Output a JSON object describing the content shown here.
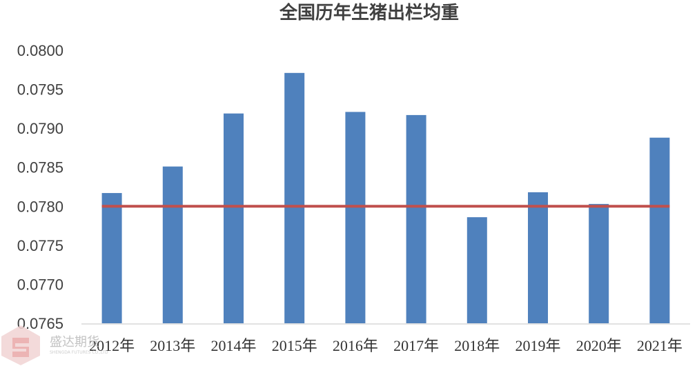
{
  "chart_data": {
    "type": "bar",
    "title": "全国历年生猪出栏均重",
    "categories": [
      "2012年",
      "2013年",
      "2014年",
      "2015年",
      "2016年",
      "2017年",
      "2018年",
      "2019年",
      "2020年",
      "2021年"
    ],
    "series": [
      {
        "values": [
          0.07817,
          0.07851,
          0.07919,
          0.07971,
          0.07921,
          0.07917,
          0.07786,
          0.07818,
          0.07803,
          0.07888
        ]
      }
    ],
    "reference_line": {
      "value": 0.078
    },
    "ylim": [
      0.0765,
      0.08
    ],
    "yticks": [
      "0.0765",
      "0.0770",
      "0.0775",
      "0.0780",
      "0.0785",
      "0.0790",
      "0.0795",
      "0.0800"
    ],
    "xlabel": "",
    "ylabel": "",
    "grid": false,
    "legend": "none"
  },
  "colors": {
    "bar": "#4f81bd",
    "reference_line": "#c0504d",
    "axis": "#d9d9d9"
  },
  "watermark": {
    "logo": "shield-logo",
    "text": "盛达期货",
    "subtext": "SHENGDA FUTURES CO.,LTD"
  }
}
